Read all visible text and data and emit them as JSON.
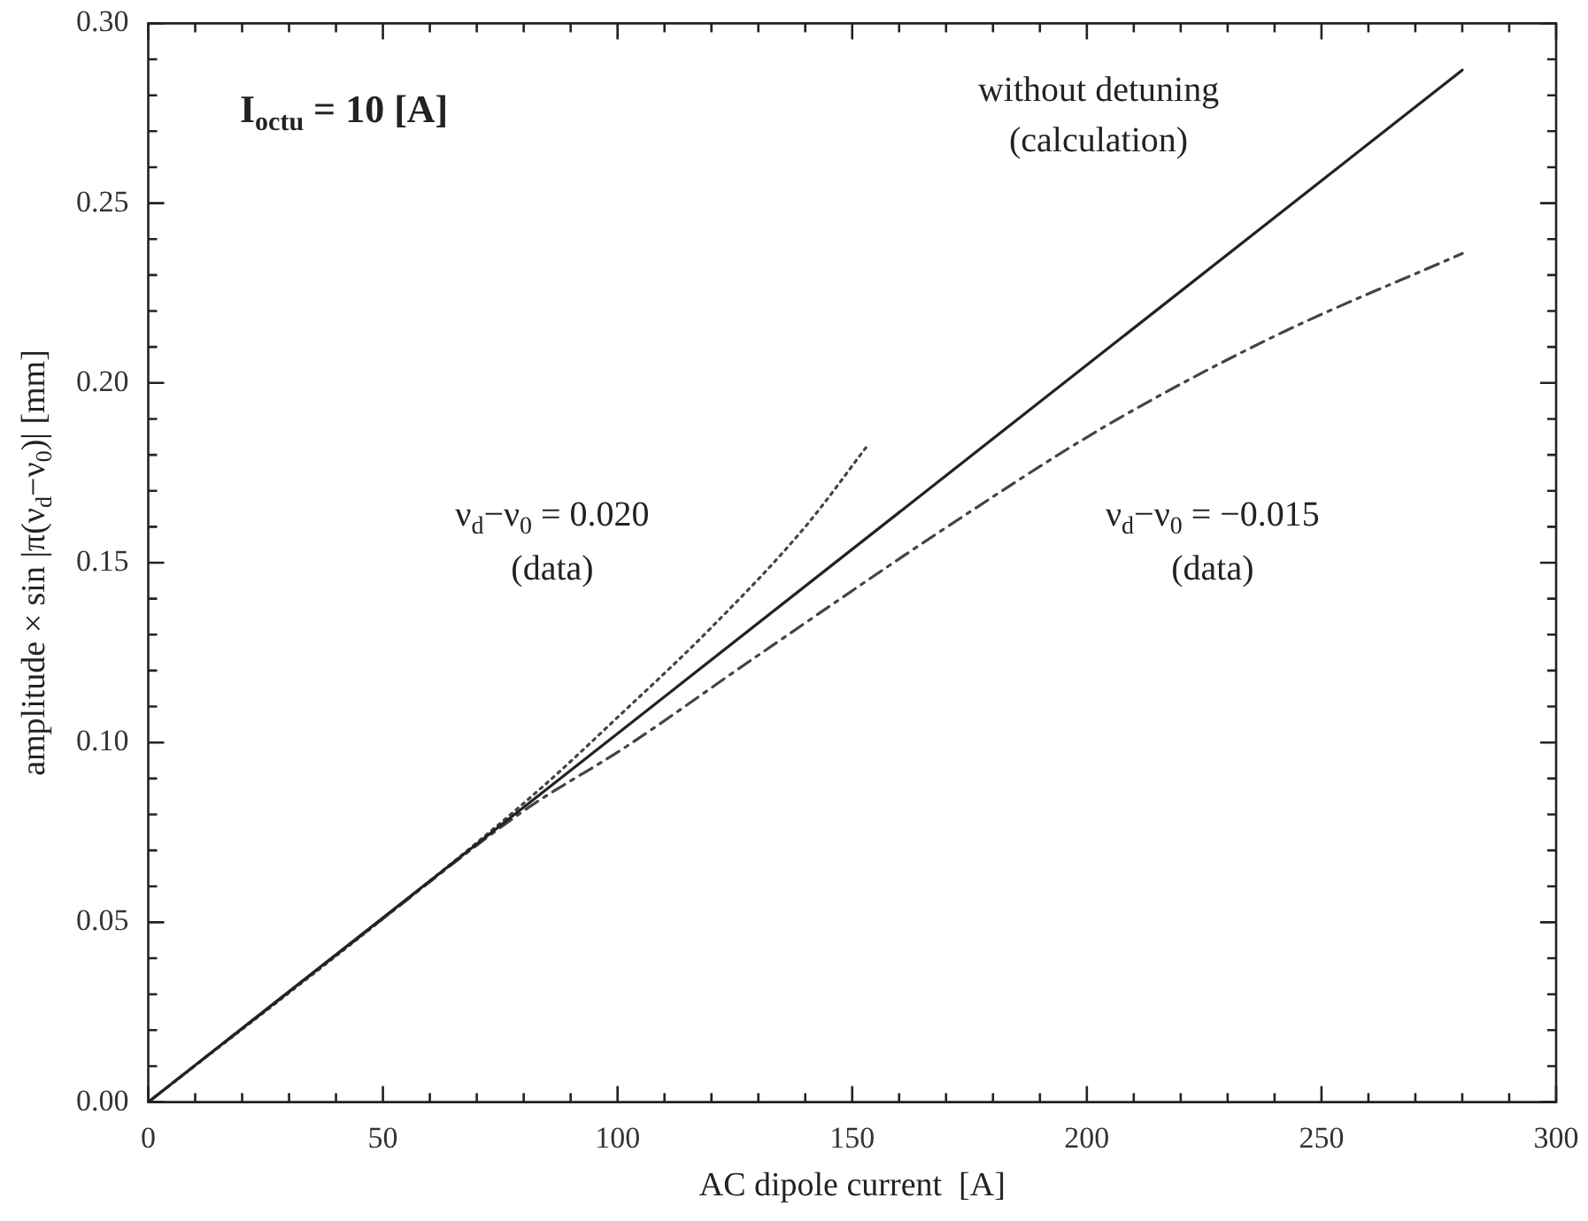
{
  "chart_data": {
    "type": "line",
    "xlabel": "AC dipole current  [A]",
    "ylabel": "amplitude × sin |π(ν$_{d}$−ν$_{0}$)| [mm]",
    "xlim": [
      0,
      300
    ],
    "ylim": [
      0,
      0.3
    ],
    "xticks": [
      0,
      {
        "value": 10,
        "label": null
      },
      {
        "value": 20,
        "label": null
      },
      {
        "value": 30,
        "label": null
      },
      {
        "value": 40,
        "label": null
      },
      50,
      {
        "value": 60,
        "label": null
      },
      {
        "value": 70,
        "label": null
      },
      {
        "value": 80,
        "label": null
      },
      {
        "value": 90,
        "label": null
      },
      100,
      {
        "value": 110,
        "label": null
      },
      {
        "value": 120,
        "label": null
      },
      {
        "value": 130,
        "label": null
      },
      {
        "value": 140,
        "label": null
      },
      150,
      {
        "value": 160,
        "label": null
      },
      {
        "value": 170,
        "label": null
      },
      {
        "value": 180,
        "label": null
      },
      {
        "value": 190,
        "label": null
      },
      200,
      {
        "value": 210,
        "label": null
      },
      {
        "value": 220,
        "label": null
      },
      {
        "value": 230,
        "label": null
      },
      {
        "value": 240,
        "label": null
      },
      250,
      {
        "value": 260,
        "label": null
      },
      {
        "value": 270,
        "label": null
      },
      {
        "value": 280,
        "label": null
      },
      {
        "value": 290,
        "label": null
      },
      300
    ],
    "yticks": [
      {
        "value": 0,
        "label": "0.00"
      },
      {
        "value": 0.01,
        "label": null
      },
      {
        "value": 0.02,
        "label": null
      },
      {
        "value": 0.03,
        "label": null
      },
      {
        "value": 0.04,
        "label": null
      },
      0.05,
      {
        "value": 0.06,
        "label": null
      },
      {
        "value": 0.07,
        "label": null
      },
      {
        "value": 0.08,
        "label": null
      },
      {
        "value": 0.09,
        "label": null
      },
      {
        "value": 0.1,
        "label": "0.10"
      },
      {
        "value": 0.11,
        "label": null
      },
      {
        "value": 0.12,
        "label": null
      },
      {
        "value": 0.13,
        "label": null
      },
      {
        "value": 0.14,
        "label": null
      },
      0.15,
      {
        "value": 0.16,
        "label": null
      },
      {
        "value": 0.17,
        "label": null
      },
      {
        "value": 0.18,
        "label": null
      },
      {
        "value": 0.19,
        "label": null
      },
      {
        "value": 0.2,
        "label": "0.20"
      },
      {
        "value": 0.21,
        "label": null
      },
      {
        "value": 0.22,
        "label": null
      },
      {
        "value": 0.23,
        "label": null
      },
      {
        "value": 0.24,
        "label": null
      },
      0.25,
      {
        "value": 0.26,
        "label": null
      },
      {
        "value": 0.27,
        "label": null
      },
      {
        "value": 0.28,
        "label": null
      },
      {
        "value": 0.29,
        "label": null
      },
      {
        "value": 0.3,
        "label": "0.30"
      }
    ],
    "grid": false,
    "legend": false,
    "marker": "none",
    "series": [
      {
        "color": "#222222",
        "line_style": "solid",
        "x": [
          0,
          280
        ],
        "values": [
          0,
          0.287
        ]
      },
      {
        "color": "#444444",
        "line_style": "dotted",
        "x": [
          0,
          50,
          83,
          100,
          120,
          140,
          153.5
        ],
        "values": [
          0,
          0.051,
          0.0865,
          0.107,
          0.132,
          0.16,
          0.183
        ]
      },
      {
        "color": "#444444",
        "line_style": "dashed",
        "x": [
          0,
          50,
          80,
          102,
          128,
          172,
          204,
          240,
          280
        ],
        "values": [
          0,
          0.051,
          0.081,
          0.099,
          0.1225,
          0.1615,
          0.188,
          0.213,
          0.236
        ]
      }
    ],
    "annotations": [
      "I$_{octu}$ = 10 [A]",
      "without detuning",
      "(calculation)",
      "ν$_{d}$−ν$_{0}$ = 0.020",
      "(data)",
      "ν$_{d}$−ν$_{0}$ = −0.015",
      "(data)"
    ]
  }
}
